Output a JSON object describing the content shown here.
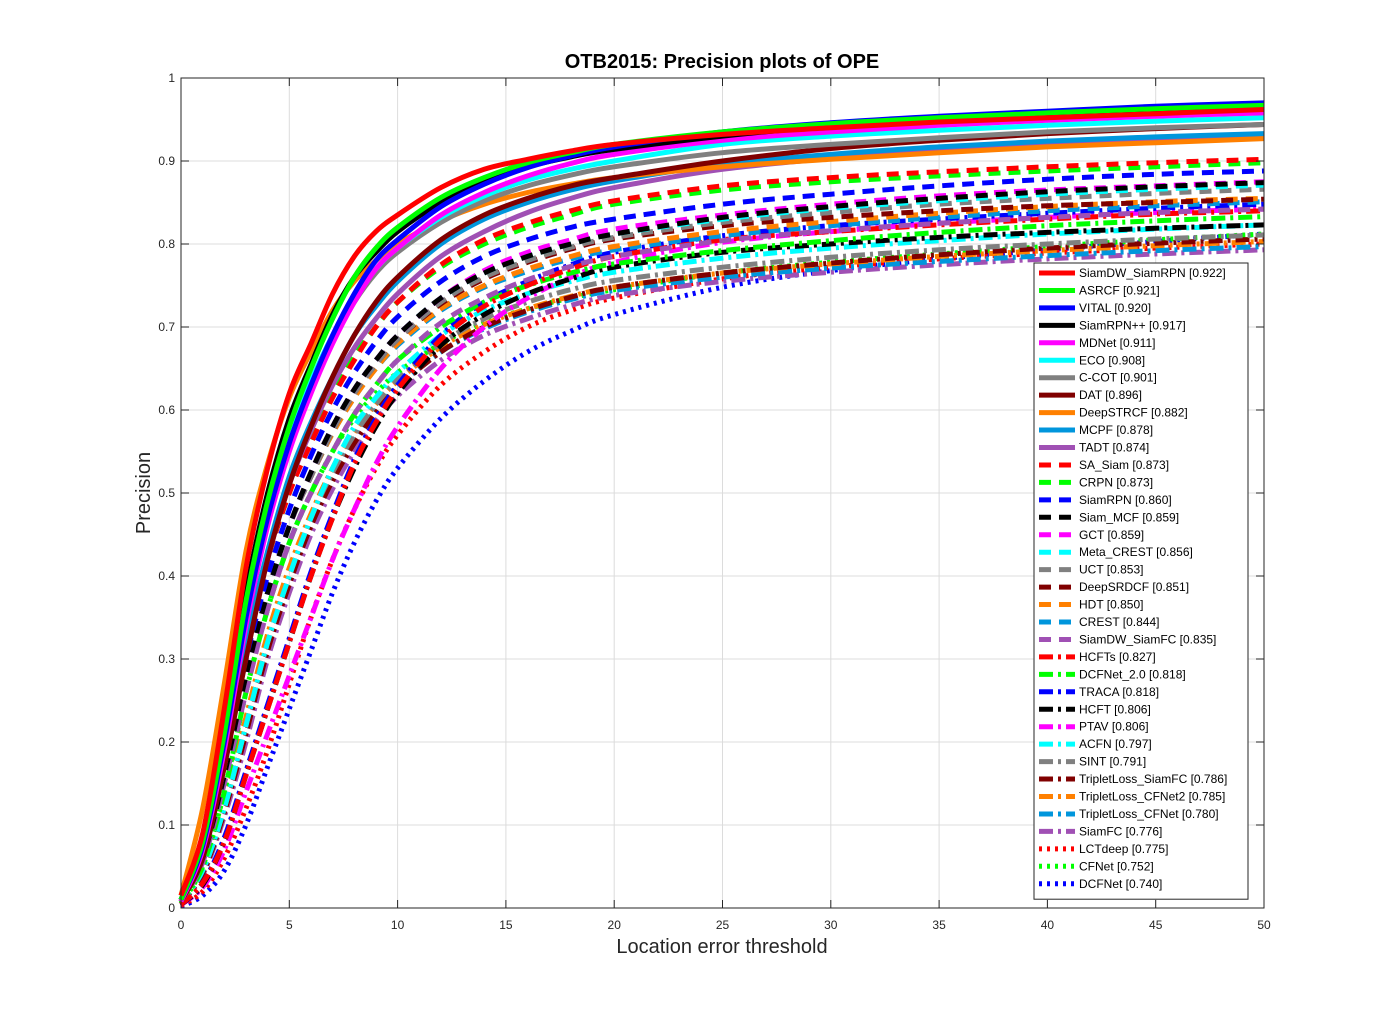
{
  "chart_data": {
    "type": "line",
    "title": "OTB2015: Precision plots of OPE",
    "xlabel": "Location error threshold",
    "ylabel": "Precision",
    "xlim": [
      0,
      50
    ],
    "ylim": [
      0,
      1
    ],
    "xticks": [
      "0",
      "5",
      "10",
      "15",
      "20",
      "25",
      "30",
      "35",
      "40",
      "45",
      "50"
    ],
    "yticks": [
      "0",
      "0.1",
      "0.2",
      "0.3",
      "0.4",
      "0.5",
      "0.6",
      "0.7",
      "0.8",
      "0.9",
      "1"
    ],
    "grid": true,
    "legend_position": "right",
    "x": [
      0,
      1,
      2,
      3,
      4,
      5,
      6,
      7,
      8,
      9,
      10,
      12,
      14,
      16,
      18,
      20,
      25,
      30,
      35,
      40,
      45,
      50
    ],
    "series": [
      {
        "name": "SiamDW_SiamRPN [0.922]",
        "color": "#ff0000",
        "style": "solid",
        "values": [
          0.015,
          0.09,
          0.24,
          0.41,
          0.53,
          0.62,
          0.68,
          0.74,
          0.785,
          0.815,
          0.835,
          0.868,
          0.89,
          0.902,
          0.912,
          0.92,
          0.932,
          0.94,
          0.947,
          0.952,
          0.957,
          0.962
        ]
      },
      {
        "name": "ASRCF [0.921]",
        "color": "#00ff00",
        "style": "solid",
        "values": [
          0.01,
          0.08,
          0.21,
          0.37,
          0.49,
          0.58,
          0.65,
          0.71,
          0.76,
          0.795,
          0.82,
          0.856,
          0.88,
          0.898,
          0.91,
          0.92,
          0.935,
          0.945,
          0.952,
          0.958,
          0.963,
          0.967
        ]
      },
      {
        "name": "VITAL [0.920]",
        "color": "#0000ff",
        "style": "solid",
        "values": [
          0.01,
          0.075,
          0.2,
          0.35,
          0.47,
          0.56,
          0.63,
          0.69,
          0.74,
          0.78,
          0.805,
          0.845,
          0.872,
          0.892,
          0.906,
          0.917,
          0.935,
          0.946,
          0.954,
          0.96,
          0.966,
          0.97
        ]
      },
      {
        "name": "SiamRPN++ [0.917]",
        "color": "#000000",
        "style": "solid",
        "values": [
          0.01,
          0.08,
          0.22,
          0.38,
          0.5,
          0.59,
          0.655,
          0.715,
          0.76,
          0.79,
          0.815,
          0.85,
          0.875,
          0.893,
          0.905,
          0.914,
          0.93,
          0.942,
          0.95,
          0.957,
          0.962,
          0.966
        ]
      },
      {
        "name": "MDNet [0.911]",
        "color": "#ff00ff",
        "style": "solid",
        "values": [
          0.008,
          0.07,
          0.19,
          0.34,
          0.46,
          0.55,
          0.62,
          0.68,
          0.73,
          0.77,
          0.795,
          0.835,
          0.862,
          0.882,
          0.897,
          0.908,
          0.925,
          0.935,
          0.943,
          0.949,
          0.954,
          0.958
        ]
      },
      {
        "name": "ECO [0.908]",
        "color": "#00ffff",
        "style": "solid",
        "values": [
          0.01,
          0.08,
          0.21,
          0.36,
          0.48,
          0.57,
          0.635,
          0.69,
          0.735,
          0.77,
          0.795,
          0.832,
          0.858,
          0.877,
          0.89,
          0.9,
          0.92,
          0.93,
          0.937,
          0.943,
          0.948,
          0.952
        ]
      },
      {
        "name": "C-COT [0.901]",
        "color": "#808080",
        "style": "solid",
        "values": [
          0.01,
          0.08,
          0.21,
          0.36,
          0.48,
          0.57,
          0.63,
          0.685,
          0.73,
          0.765,
          0.79,
          0.826,
          0.852,
          0.87,
          0.883,
          0.893,
          0.91,
          0.92,
          0.928,
          0.935,
          0.94,
          0.944
        ]
      },
      {
        "name": "DAT [0.896]",
        "color": "#800000",
        "style": "solid",
        "values": [
          0.008,
          0.06,
          0.17,
          0.3,
          0.42,
          0.51,
          0.58,
          0.64,
          0.69,
          0.73,
          0.76,
          0.805,
          0.835,
          0.855,
          0.87,
          0.88,
          0.9,
          0.915,
          0.925,
          0.933,
          0.939,
          0.944
        ]
      },
      {
        "name": "DeepSTRCF [0.882]",
        "color": "#ff8000",
        "style": "solid",
        "values": [
          0.015,
          0.12,
          0.27,
          0.43,
          0.535,
          0.615,
          0.67,
          0.72,
          0.755,
          0.78,
          0.8,
          0.828,
          0.848,
          0.862,
          0.872,
          0.88,
          0.893,
          0.902,
          0.91,
          0.917,
          0.922,
          0.927
        ]
      },
      {
        "name": "MCPF [0.878]",
        "color": "#0096dc",
        "style": "solid",
        "values": [
          0.008,
          0.07,
          0.18,
          0.32,
          0.43,
          0.52,
          0.585,
          0.64,
          0.69,
          0.725,
          0.755,
          0.8,
          0.83,
          0.85,
          0.865,
          0.876,
          0.896,
          0.908,
          0.917,
          0.924,
          0.929,
          0.933
        ]
      },
      {
        "name": "TADT [0.874]",
        "color": "#a050b4",
        "style": "solid",
        "values": [
          0.008,
          0.065,
          0.17,
          0.31,
          0.42,
          0.51,
          0.575,
          0.63,
          0.675,
          0.71,
          0.74,
          0.785,
          0.815,
          0.838,
          0.855,
          0.868,
          0.89,
          0.903,
          0.912,
          0.919,
          0.925,
          0.93
        ]
      },
      {
        "name": "SA_Siam [0.873]",
        "color": "#ff0000",
        "style": "dashed",
        "values": [
          0.01,
          0.07,
          0.18,
          0.31,
          0.42,
          0.5,
          0.56,
          0.615,
          0.66,
          0.7,
          0.73,
          0.775,
          0.805,
          0.825,
          0.84,
          0.852,
          0.87,
          0.88,
          0.887,
          0.893,
          0.898,
          0.902
        ]
      },
      {
        "name": "CRPN [0.873]",
        "color": "#00ff00",
        "style": "dashed",
        "values": [
          0.01,
          0.07,
          0.18,
          0.31,
          0.42,
          0.5,
          0.565,
          0.62,
          0.665,
          0.7,
          0.73,
          0.772,
          0.8,
          0.82,
          0.835,
          0.848,
          0.865,
          0.875,
          0.882,
          0.888,
          0.893,
          0.898
        ]
      },
      {
        "name": "SiamRPN [0.860]",
        "color": "#0000ff",
        "style": "dashed",
        "values": [
          0.01,
          0.07,
          0.18,
          0.3,
          0.4,
          0.48,
          0.545,
          0.6,
          0.645,
          0.682,
          0.712,
          0.755,
          0.785,
          0.805,
          0.82,
          0.83,
          0.848,
          0.86,
          0.87,
          0.878,
          0.884,
          0.888
        ]
      },
      {
        "name": "Siam_MCF [0.859]",
        "color": "#000000",
        "style": "dashed",
        "values": [
          0.008,
          0.06,
          0.16,
          0.28,
          0.38,
          0.46,
          0.525,
          0.58,
          0.625,
          0.66,
          0.69,
          0.735,
          0.765,
          0.785,
          0.8,
          0.812,
          0.832,
          0.845,
          0.855,
          0.863,
          0.869,
          0.874
        ]
      },
      {
        "name": "GCT [0.859]",
        "color": "#ff00ff",
        "style": "dashed",
        "values": [
          0.008,
          0.06,
          0.16,
          0.28,
          0.38,
          0.46,
          0.525,
          0.58,
          0.625,
          0.66,
          0.69,
          0.735,
          0.768,
          0.79,
          0.805,
          0.818,
          0.835,
          0.848,
          0.858,
          0.865,
          0.87,
          0.875
        ]
      },
      {
        "name": "Meta_CREST [0.856]",
        "color": "#00ffff",
        "style": "dashed",
        "values": [
          0.008,
          0.06,
          0.16,
          0.28,
          0.38,
          0.46,
          0.525,
          0.58,
          0.625,
          0.66,
          0.69,
          0.735,
          0.765,
          0.785,
          0.8,
          0.812,
          0.83,
          0.843,
          0.852,
          0.86,
          0.866,
          0.871
        ]
      },
      {
        "name": "UCT [0.853]",
        "color": "#808080",
        "style": "dashed",
        "values": [
          0.008,
          0.06,
          0.16,
          0.28,
          0.38,
          0.46,
          0.52,
          0.575,
          0.62,
          0.655,
          0.685,
          0.73,
          0.76,
          0.78,
          0.796,
          0.808,
          0.826,
          0.838,
          0.848,
          0.855,
          0.861,
          0.866
        ]
      },
      {
        "name": "DeepSRDCF [0.851]",
        "color": "#800000",
        "style": "dashed",
        "values": [
          0.008,
          0.06,
          0.16,
          0.28,
          0.38,
          0.46,
          0.52,
          0.575,
          0.62,
          0.655,
          0.685,
          0.728,
          0.758,
          0.778,
          0.794,
          0.806,
          0.822,
          0.832,
          0.84,
          0.846,
          0.85,
          0.854
        ]
      },
      {
        "name": "HDT [0.850]",
        "color": "#ff8000",
        "style": "dashed",
        "values": [
          0.008,
          0.06,
          0.16,
          0.28,
          0.38,
          0.46,
          0.52,
          0.572,
          0.615,
          0.65,
          0.68,
          0.722,
          0.75,
          0.77,
          0.785,
          0.797,
          0.815,
          0.827,
          0.837,
          0.845,
          0.851,
          0.855
        ]
      },
      {
        "name": "CREST [0.844]",
        "color": "#0096dc",
        "style": "dashed",
        "values": [
          0.008,
          0.06,
          0.16,
          0.28,
          0.38,
          0.46,
          0.52,
          0.572,
          0.615,
          0.65,
          0.678,
          0.72,
          0.748,
          0.767,
          0.782,
          0.793,
          0.81,
          0.822,
          0.832,
          0.84,
          0.846,
          0.851
        ]
      },
      {
        "name": "SiamDW_SiamFC [0.835]",
        "color": "#a050b4",
        "style": "dashed",
        "values": [
          0.008,
          0.055,
          0.15,
          0.26,
          0.36,
          0.44,
          0.5,
          0.55,
          0.595,
          0.63,
          0.66,
          0.705,
          0.735,
          0.757,
          0.773,
          0.785,
          0.804,
          0.816,
          0.825,
          0.832,
          0.838,
          0.842
        ]
      },
      {
        "name": "HCFTs [0.827]",
        "color": "#ff0000",
        "style": "dashdot",
        "values": [
          0.004,
          0.03,
          0.08,
          0.16,
          0.24,
          0.32,
          0.4,
          0.47,
          0.535,
          0.585,
          0.625,
          0.685,
          0.725,
          0.75,
          0.77,
          0.785,
          0.805,
          0.815,
          0.823,
          0.83,
          0.836,
          0.84
        ]
      },
      {
        "name": "DCFNet_2.0 [0.818]",
        "color": "#00ff00",
        "style": "dashdot",
        "values": [
          0.006,
          0.05,
          0.14,
          0.26,
          0.36,
          0.44,
          0.5,
          0.55,
          0.595,
          0.63,
          0.66,
          0.7,
          0.73,
          0.75,
          0.765,
          0.776,
          0.792,
          0.804,
          0.814,
          0.822,
          0.828,
          0.833
        ]
      },
      {
        "name": "TRACA [0.818]",
        "color": "#0000ff",
        "style": "dashdot",
        "values": [
          0.004,
          0.03,
          0.085,
          0.165,
          0.245,
          0.325,
          0.405,
          0.475,
          0.54,
          0.59,
          0.63,
          0.69,
          0.73,
          0.755,
          0.775,
          0.79,
          0.81,
          0.822,
          0.83,
          0.837,
          0.843,
          0.848
        ]
      },
      {
        "name": "HCFT [0.806]",
        "color": "#000000",
        "style": "dashdot",
        "values": [
          0.004,
          0.028,
          0.08,
          0.16,
          0.24,
          0.32,
          0.4,
          0.47,
          0.53,
          0.58,
          0.62,
          0.678,
          0.715,
          0.74,
          0.758,
          0.772,
          0.79,
          0.8,
          0.808,
          0.814,
          0.819,
          0.823
        ]
      },
      {
        "name": "PTAV [0.806]",
        "color": "#ff00ff",
        "style": "dashdot",
        "values": [
          0.004,
          0.025,
          0.07,
          0.14,
          0.21,
          0.28,
          0.35,
          0.42,
          0.48,
          0.535,
          0.58,
          0.65,
          0.7,
          0.735,
          0.76,
          0.778,
          0.802,
          0.815,
          0.825,
          0.832,
          0.838,
          0.842
        ]
      },
      {
        "name": "ACFN [0.797]",
        "color": "#00ffff",
        "style": "dashdot",
        "values": [
          0.006,
          0.045,
          0.12,
          0.22,
          0.32,
          0.4,
          0.47,
          0.53,
          0.58,
          0.615,
          0.645,
          0.69,
          0.72,
          0.74,
          0.755,
          0.766,
          0.783,
          0.795,
          0.804,
          0.812,
          0.818,
          0.823
        ]
      },
      {
        "name": "SINT [0.791]",
        "color": "#808080",
        "style": "dashdot",
        "values": [
          0.006,
          0.045,
          0.12,
          0.22,
          0.32,
          0.4,
          0.47,
          0.525,
          0.57,
          0.607,
          0.637,
          0.68,
          0.71,
          0.73,
          0.745,
          0.756,
          0.772,
          0.784,
          0.793,
          0.8,
          0.806,
          0.811
        ]
      },
      {
        "name": "TripletLoss_SiamFC [0.786]",
        "color": "#800000",
        "style": "dashdot",
        "values": [
          0.006,
          0.042,
          0.115,
          0.21,
          0.31,
          0.39,
          0.46,
          0.515,
          0.56,
          0.597,
          0.627,
          0.67,
          0.7,
          0.72,
          0.736,
          0.748,
          0.765,
          0.777,
          0.787,
          0.795,
          0.801,
          0.806
        ]
      },
      {
        "name": "TripletLoss_CFNet2 [0.785]",
        "color": "#ff8000",
        "style": "dashdot",
        "values": [
          0.006,
          0.045,
          0.125,
          0.23,
          0.33,
          0.41,
          0.475,
          0.53,
          0.573,
          0.607,
          0.635,
          0.676,
          0.703,
          0.722,
          0.737,
          0.748,
          0.765,
          0.776,
          0.785,
          0.792,
          0.798,
          0.803
        ]
      },
      {
        "name": "TripletLoss_CFNet [0.780]",
        "color": "#0096dc",
        "style": "dashdot",
        "values": [
          0.006,
          0.045,
          0.12,
          0.22,
          0.32,
          0.4,
          0.465,
          0.52,
          0.565,
          0.6,
          0.628,
          0.67,
          0.698,
          0.718,
          0.733,
          0.744,
          0.76,
          0.771,
          0.779,
          0.786,
          0.792,
          0.797
        ]
      },
      {
        "name": "SiamFC [0.776]",
        "color": "#a050b4",
        "style": "dashdot",
        "values": [
          0.006,
          0.04,
          0.11,
          0.2,
          0.3,
          0.38,
          0.45,
          0.505,
          0.55,
          0.587,
          0.617,
          0.66,
          0.69,
          0.71,
          0.726,
          0.738,
          0.755,
          0.766,
          0.775,
          0.782,
          0.788,
          0.793
        ]
      },
      {
        "name": "LCTdeep [0.775]",
        "color": "#ff0000",
        "style": "dotted",
        "values": [
          0.003,
          0.02,
          0.06,
          0.12,
          0.19,
          0.27,
          0.35,
          0.42,
          0.48,
          0.53,
          0.57,
          0.63,
          0.67,
          0.7,
          0.72,
          0.735,
          0.758,
          0.772,
          0.782,
          0.789,
          0.795,
          0.8
        ]
      },
      {
        "name": "CFNet [0.752]",
        "color": "#00ff00",
        "style": "dotted",
        "values": [
          0.005,
          0.05,
          0.14,
          0.26,
          0.36,
          0.44,
          0.5,
          0.55,
          0.59,
          0.62,
          0.645,
          0.68,
          0.705,
          0.722,
          0.735,
          0.745,
          0.765,
          0.778,
          0.788,
          0.797,
          0.805,
          0.812
        ]
      },
      {
        "name": "DCFNet [0.740]",
        "color": "#0000ff",
        "style": "dotted",
        "values": [
          0.002,
          0.015,
          0.045,
          0.1,
          0.17,
          0.24,
          0.31,
          0.38,
          0.44,
          0.49,
          0.53,
          0.59,
          0.635,
          0.67,
          0.695,
          0.715,
          0.748,
          0.768,
          0.782,
          0.793,
          0.803,
          0.812
        ]
      }
    ]
  }
}
